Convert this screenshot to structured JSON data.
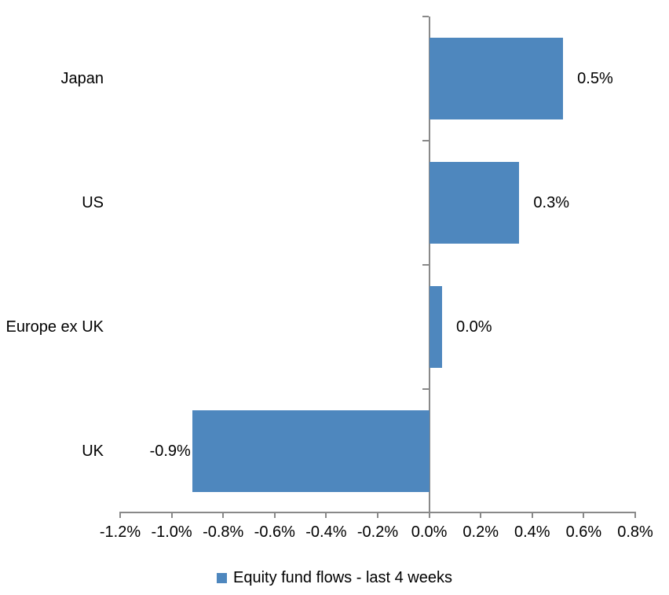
{
  "chart_data": {
    "type": "bar",
    "orientation": "horizontal",
    "title": "",
    "xlabel": "",
    "ylabel": "",
    "categories": [
      "Japan",
      "US",
      "Europe ex UK",
      "UK"
    ],
    "series": [
      {
        "name": "Equity fund flows - last 4 weeks",
        "values": [
          0.5,
          0.3,
          0.0,
          -0.9
        ],
        "value_labels": [
          "0.5%",
          "0.3%",
          "0.0%",
          "-0.9%"
        ],
        "bar_extents_pct": [
          0.52,
          0.35,
          0.05,
          -0.92
        ]
      }
    ],
    "xlim": [
      -1.2,
      0.8
    ],
    "x_tick_values": [
      -1.2,
      -1.0,
      -0.8,
      -0.6,
      -0.4,
      -0.2,
      0.0,
      0.2,
      0.4,
      0.6,
      0.8
    ],
    "x_tick_labels": [
      "-1.2%",
      "-1.0%",
      "-0.8%",
      "-0.6%",
      "-0.4%",
      "-0.2%",
      "0.0%",
      "0.2%",
      "0.4%",
      "0.6%",
      "0.8%"
    ],
    "grid": false,
    "legend": {
      "position": "bottom",
      "label": "Equity fund flows - last 4 weeks"
    },
    "colors": {
      "bar": "#4E87BE",
      "axis": "#898989",
      "text": "#000000",
      "background": "#FFFFFF"
    }
  }
}
